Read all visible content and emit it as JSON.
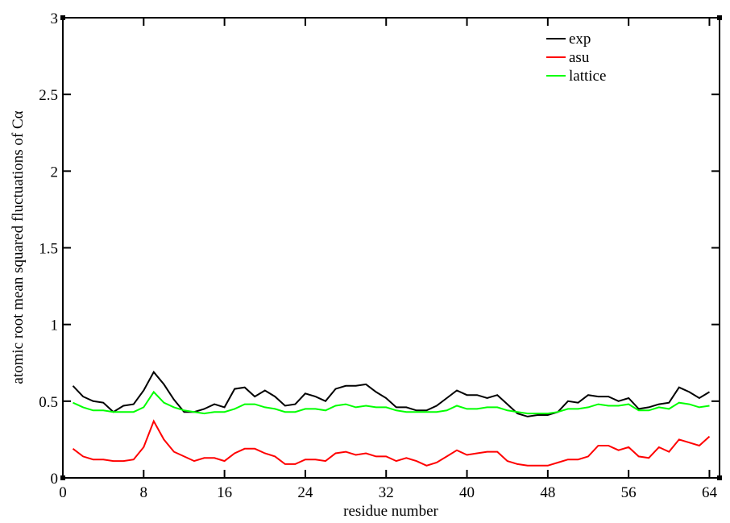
{
  "chart_data": {
    "type": "line",
    "xlabel": "residue number",
    "ylabel": "atomic root mean squared fluctuations of Cα",
    "x": [
      1,
      2,
      3,
      4,
      5,
      6,
      7,
      8,
      9,
      10,
      11,
      12,
      13,
      14,
      15,
      16,
      17,
      18,
      19,
      20,
      21,
      22,
      23,
      24,
      25,
      26,
      27,
      28,
      29,
      30,
      31,
      32,
      33,
      34,
      35,
      36,
      37,
      38,
      39,
      40,
      41,
      42,
      43,
      44,
      45,
      46,
      47,
      48,
      49,
      50,
      51,
      52,
      53,
      54,
      55,
      56,
      57,
      58,
      59,
      60,
      61,
      62,
      63,
      64
    ],
    "series": [
      {
        "name": "exp",
        "color": "#000000",
        "values": [
          0.6,
          0.53,
          0.5,
          0.49,
          0.43,
          0.47,
          0.48,
          0.57,
          0.69,
          0.61,
          0.51,
          0.43,
          0.43,
          0.45,
          0.48,
          0.46,
          0.58,
          0.59,
          0.53,
          0.57,
          0.53,
          0.47,
          0.48,
          0.55,
          0.53,
          0.5,
          0.58,
          0.6,
          0.6,
          0.61,
          0.56,
          0.52,
          0.46,
          0.46,
          0.44,
          0.44,
          0.47,
          0.52,
          0.57,
          0.54,
          0.54,
          0.52,
          0.54,
          0.48,
          0.42,
          0.4,
          0.41,
          0.41,
          0.43,
          0.5,
          0.49,
          0.54,
          0.53,
          0.53,
          0.5,
          0.52,
          0.45,
          0.46,
          0.48,
          0.49,
          0.59,
          0.56,
          0.52,
          0.56
        ]
      },
      {
        "name": "asu",
        "color": "#ff0000",
        "values": [
          0.19,
          0.14,
          0.12,
          0.12,
          0.11,
          0.11,
          0.12,
          0.2,
          0.37,
          0.25,
          0.17,
          0.14,
          0.11,
          0.13,
          0.13,
          0.11,
          0.16,
          0.19,
          0.19,
          0.16,
          0.14,
          0.09,
          0.09,
          0.12,
          0.12,
          0.11,
          0.16,
          0.17,
          0.15,
          0.16,
          0.14,
          0.14,
          0.11,
          0.13,
          0.11,
          0.08,
          0.1,
          0.14,
          0.18,
          0.15,
          0.16,
          0.17,
          0.17,
          0.11,
          0.09,
          0.08,
          0.08,
          0.08,
          0.1,
          0.12,
          0.12,
          0.14,
          0.21,
          0.21,
          0.18,
          0.2,
          0.14,
          0.13,
          0.2,
          0.17,
          0.25,
          0.23,
          0.21,
          0.27
        ]
      },
      {
        "name": "lattice",
        "color": "#00ff00",
        "values": [
          0.49,
          0.46,
          0.44,
          0.44,
          0.43,
          0.43,
          0.43,
          0.46,
          0.56,
          0.49,
          0.46,
          0.44,
          0.43,
          0.42,
          0.43,
          0.43,
          0.45,
          0.48,
          0.48,
          0.46,
          0.45,
          0.43,
          0.43,
          0.45,
          0.45,
          0.44,
          0.47,
          0.48,
          0.46,
          0.47,
          0.46,
          0.46,
          0.44,
          0.43,
          0.43,
          0.43,
          0.43,
          0.44,
          0.47,
          0.45,
          0.45,
          0.46,
          0.46,
          0.44,
          0.43,
          0.42,
          0.42,
          0.42,
          0.43,
          0.45,
          0.45,
          0.46,
          0.48,
          0.47,
          0.47,
          0.48,
          0.44,
          0.44,
          0.46,
          0.45,
          0.49,
          0.48,
          0.46,
          0.47
        ]
      }
    ],
    "xlim": [
      0,
      65
    ],
    "xticks": [
      0,
      8,
      16,
      24,
      32,
      40,
      48,
      56,
      64
    ],
    "ylim": [
      0,
      3
    ],
    "yticks": [
      0,
      0.5,
      1,
      1.5,
      2,
      2.5,
      3
    ],
    "grid": false,
    "legend": "upper right"
  }
}
